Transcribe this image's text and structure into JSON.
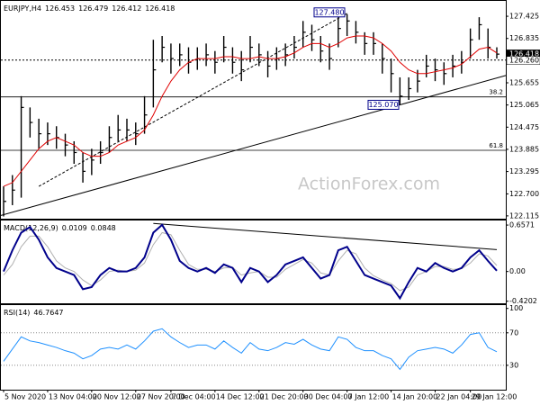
{
  "chart_data": [
    {
      "type": "ohlc",
      "title": "EURJPY,H4",
      "info": [
        126.453,
        126.479,
        126.412,
        126.418
      ],
      "color": "#000000",
      "close": [
        122.5,
        122.8,
        125.0,
        124.6,
        124.3,
        124.3,
        124.2,
        124.0,
        123.8,
        123.3,
        123.6,
        123.8,
        124.2,
        124.4,
        124.4,
        124.3,
        124.8,
        126.0,
        126.6,
        126.3,
        126.4,
        126.2,
        126.3,
        126.4,
        126.2,
        126.6,
        126.2,
        126.0,
        126.6,
        126.4,
        126.1,
        126.3,
        126.4,
        126.6,
        127.0,
        126.8,
        126.5,
        126.3,
        127.1,
        127.3,
        127.0,
        126.7,
        126.7,
        126.3,
        125.9,
        125.3,
        125.5,
        125.7,
        126.1,
        126.0,
        125.9,
        126.1,
        126.2,
        126.8,
        127.2,
        126.6,
        126.418
      ],
      "high": [
        122.9,
        123.2,
        125.3,
        125.0,
        124.7,
        124.6,
        124.5,
        124.3,
        124.1,
        123.8,
        123.9,
        124.1,
        124.5,
        124.8,
        124.7,
        124.6,
        125.3,
        126.8,
        126.9,
        126.7,
        126.7,
        126.6,
        126.6,
        126.7,
        126.5,
        126.9,
        126.6,
        126.5,
        126.9,
        126.7,
        126.5,
        126.6,
        126.7,
        126.9,
        127.3,
        127.2,
        126.9,
        126.7,
        127.4,
        127.48,
        127.3,
        127.0,
        127.0,
        126.7,
        126.3,
        125.8,
        125.8,
        126.0,
        126.4,
        126.3,
        126.2,
        126.4,
        126.5,
        127.1,
        127.4,
        127.1,
        126.6
      ],
      "low": [
        122.1,
        122.4,
        122.6,
        124.2,
        123.9,
        124.0,
        123.9,
        123.7,
        123.5,
        123.0,
        123.2,
        123.5,
        123.8,
        124.1,
        124.1,
        124.0,
        124.3,
        125.0,
        126.2,
        125.9,
        126.1,
        125.9,
        126.0,
        126.1,
        125.9,
        126.2,
        125.9,
        125.7,
        126.2,
        126.1,
        125.8,
        126.0,
        126.1,
        126.3,
        126.6,
        126.5,
        126.2,
        126.0,
        126.6,
        126.9,
        126.7,
        126.4,
        126.4,
        125.9,
        125.4,
        125.07,
        125.2,
        125.4,
        125.8,
        125.7,
        125.6,
        125.8,
        125.9,
        126.3,
        126.8,
        126.3,
        126.3
      ],
      "ma": {
        "color": "#e00000",
        "values": [
          122.9,
          123.0,
          123.3,
          123.6,
          123.9,
          124.1,
          124.2,
          124.1,
          124.0,
          123.8,
          123.7,
          123.7,
          123.8,
          124.0,
          124.1,
          124.2,
          124.4,
          124.8,
          125.3,
          125.7,
          126.0,
          126.2,
          126.3,
          126.3,
          126.3,
          126.35,
          126.35,
          126.3,
          126.3,
          126.35,
          126.3,
          126.3,
          126.35,
          126.45,
          126.6,
          126.7,
          126.7,
          126.6,
          126.7,
          126.85,
          126.9,
          126.9,
          126.85,
          126.7,
          126.5,
          126.2,
          126.0,
          125.9,
          125.9,
          125.95,
          126.0,
          126.05,
          126.15,
          126.35,
          126.55,
          126.6,
          126.45
        ]
      },
      "ylim": [
        122.04,
        127.81
      ],
      "yticks": [
        127.425,
        126.835,
        125.655,
        125.065,
        124.475,
        123.885,
        123.295,
        {
          "value": 122.7,
          "label": "122.700"
        },
        122.115
      ],
      "last_price": 126.418,
      "level": {
        "value": 126.26,
        "label": "126.260"
      },
      "fib": [
        {
          "label": "38.2",
          "value": 125.28
        },
        {
          "label": "61.8",
          "value": 123.86
        }
      ],
      "trendlines": [
        [
          122.12,
          125.85
        ],
        [
          122.9,
          127.5
        ]
      ],
      "annotations": [
        {
          "value": 127.48,
          "label": "127.480"
        },
        {
          "value": 125.07,
          "label": "125.070"
        }
      ],
      "watermark": "ActionForex.com"
    },
    {
      "type": "line",
      "title": "MACD(12,26,9)",
      "info": [
        0.0109,
        0.0848
      ],
      "series": [
        {
          "color": "#00008b",
          "values": [
            0.0,
            0.3,
            0.55,
            0.63,
            0.45,
            0.2,
            0.05,
            0.0,
            -0.05,
            -0.25,
            -0.22,
            -0.05,
            0.05,
            0.0,
            0.0,
            0.05,
            0.2,
            0.55,
            0.66,
            0.45,
            0.15,
            0.05,
            0.0,
            0.05,
            -0.02,
            0.1,
            0.05,
            -0.15,
            0.05,
            0.0,
            -0.15,
            -0.05,
            0.1,
            0.15,
            0.2,
            0.05,
            -0.1,
            -0.05,
            0.3,
            0.35,
            0.15,
            -0.05,
            -0.1,
            -0.15,
            -0.2,
            -0.38,
            -0.15,
            0.05,
            0.0,
            0.12,
            0.05,
            0.0,
            0.05,
            0.2,
            0.3,
            0.15,
            0.0109
          ]
        },
        {
          "color": "#b0b0b0",
          "values": [
            -0.05,
            0.1,
            0.35,
            0.5,
            0.5,
            0.35,
            0.15,
            0.05,
            0.0,
            -0.12,
            -0.2,
            -0.12,
            0.0,
            0.02,
            0.0,
            0.02,
            0.12,
            0.38,
            0.55,
            0.52,
            0.3,
            0.1,
            0.03,
            0.03,
            0.0,
            0.05,
            0.06,
            -0.05,
            -0.02,
            0.0,
            -0.08,
            -0.08,
            0.03,
            0.1,
            0.17,
            0.12,
            -0.02,
            -0.05,
            0.15,
            0.3,
            0.25,
            0.05,
            -0.06,
            -0.12,
            -0.17,
            -0.27,
            -0.22,
            -0.05,
            0.0,
            0.07,
            0.07,
            0.03,
            0.04,
            0.12,
            0.25,
            0.22,
            0.0848
          ]
        }
      ],
      "ylim": [
        -0.45,
        0.709
      ],
      "yticks": [
        0.6571,
        {
          "value": 0,
          "label": "0.00"
        },
        -0.4202
      ],
      "trendline": [
        0.68,
        0.31
      ]
    },
    {
      "type": "line",
      "title": "RSI(14)",
      "info": [
        46.7647
      ],
      "series": [
        {
          "color": "#1e90ff",
          "values": [
            35,
            50,
            65,
            60,
            58,
            55,
            52,
            48,
            45,
            38,
            42,
            50,
            52,
            50,
            55,
            50,
            60,
            72,
            75,
            65,
            58,
            52,
            55,
            55,
            50,
            60,
            52,
            45,
            58,
            50,
            48,
            52,
            58,
            56,
            62,
            55,
            50,
            48,
            65,
            62,
            52,
            48,
            48,
            42,
            38,
            25,
            40,
            48,
            50,
            52,
            50,
            45,
            55,
            68,
            70,
            52,
            46.7647
          ]
        }
      ],
      "ylim": [
        0,
        103
      ],
      "yticks": [
        100,
        70,
        30
      ],
      "dotted_levels": [
        70,
        30
      ],
      "categories": [
        "5 Nov 2020",
        null,
        null,
        null,
        null,
        "13 Nov 04:00",
        null,
        null,
        null,
        null,
        "20 Nov 12:00",
        null,
        null,
        null,
        null,
        "27 Nov 20:00",
        null,
        null,
        null,
        "7 Dec 04:00",
        null,
        null,
        null,
        null,
        "14 Dec 12:00",
        null,
        null,
        null,
        null,
        "21 Dec 20:00",
        null,
        null,
        null,
        null,
        "30 Dec 04:00",
        null,
        null,
        null,
        null,
        "7 Jan 12:00",
        null,
        null,
        null,
        null,
        "14 Jan 20:00",
        null,
        null,
        null,
        null,
        "22 Jan 04:00",
        null,
        null,
        null,
        "29 Jan 12:00",
        null,
        null,
        null
      ]
    }
  ]
}
